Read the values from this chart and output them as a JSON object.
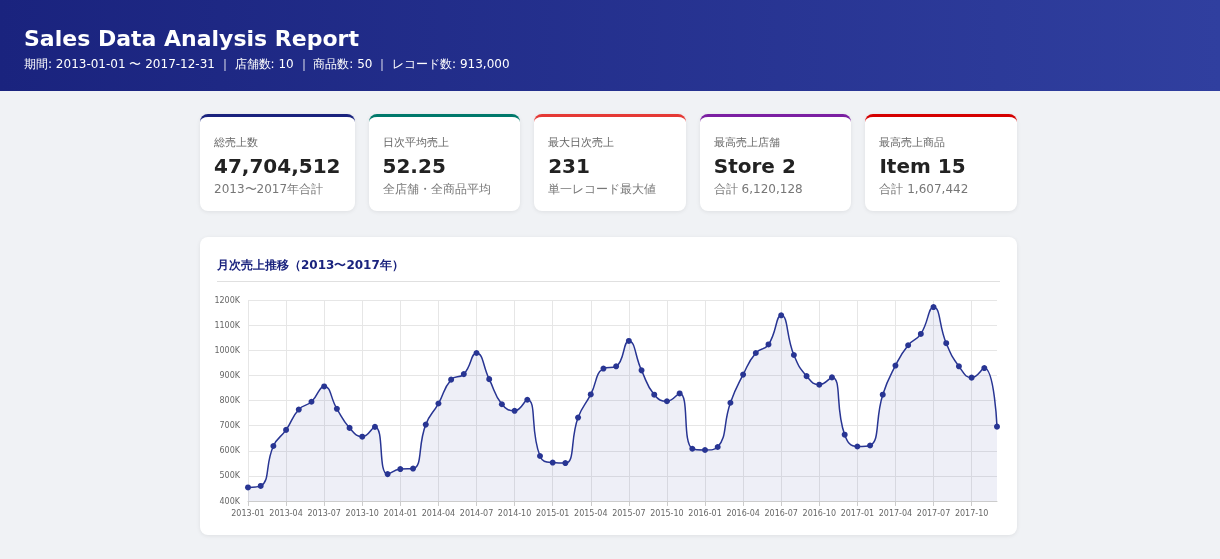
{
  "chart_data": [
    {
      "type": "other",
      "title": "Sales Data Analysis Report",
      "subtitle": "期間: 2013-01-01 〜 2017-12-31 ｜ 店舗数: 10 ｜ 商品数: 50 ｜ レコード数: 913,000",
      "annotations": [
        "総売上数",
        "47,704,512",
        "2013〜2017年合計",
        "日次平均売上",
        "52.25",
        "全店舗・全商品平均",
        "最大日次売上",
        "231",
        "単一レコード最大値",
        "最高売上店舗",
        "Store 2",
        "合計 6,120,128",
        "最高売上商品",
        "Item 15",
        "合計 1,607,442"
      ]
    },
    {
      "type": "area",
      "title": "月次売上推移（2013〜2017年）",
      "categories": [
        "2013-01",
        null,
        null,
        "2013-04",
        null,
        null,
        "2013-07",
        null,
        null,
        "2013-10",
        null,
        null,
        "2014-01",
        null,
        null,
        "2014-04",
        null,
        null,
        "2014-07",
        null,
        null,
        "2014-10",
        null,
        null,
        "2015-01",
        null,
        null,
        "2015-04",
        null,
        null,
        "2015-07",
        null,
        null,
        "2015-10",
        null,
        null,
        "2016-01",
        null,
        null,
        "2016-04",
        null,
        null,
        "2016-07",
        null,
        null,
        "2016-10",
        null,
        null,
        "2017-01",
        null,
        null,
        "2017-04",
        null,
        null,
        "2017-07",
        null,
        null,
        "2017-10",
        null,
        null
      ],
      "series": [
        {
          "color": "#283593",
          "values": [
            454000,
            460000,
            619000,
            683000,
            764000,
            795000,
            856000,
            767000,
            691000,
            656000,
            695000,
            507000,
            527000,
            529000,
            704000,
            788000,
            883000,
            905000,
            989000,
            885000,
            785000,
            759000,
            803000,
            579000,
            553000,
            551000,
            732000,
            824000,
            927000,
            936000,
            1037000,
            920000,
            823000,
            797000,
            828000,
            608000,
            603000,
            615000,
            791000,
            903000,
            989000,
            1023000,
            1139000,
            981000,
            897000,
            863000,
            892000,
            664000,
            617000,
            621000,
            823000,
            939000,
            1020000,
            1065000,
            1172000,
            1028000,
            936000,
            891000,
            929000,
            696000
          ]
        }
      ],
      "ylim": [
        400000,
        1200000
      ],
      "yticks": [
        {
          "value": 400000,
          "label": "400K"
        },
        {
          "value": 500000,
          "label": "500K"
        },
        {
          "value": 600000,
          "label": "600K"
        },
        {
          "value": 700000,
          "label": "700K"
        },
        {
          "value": 800000,
          "label": "800K"
        },
        {
          "value": 900000,
          "label": "900K"
        },
        {
          "value": 1000000,
          "label": "1000K"
        },
        {
          "value": 1100000,
          "label": "1100K"
        },
        {
          "value": 1200000,
          "label": "1200K"
        }
      ],
      "grid": true,
      "marker": "circle",
      "line_style": "solid"
    }
  ]
}
